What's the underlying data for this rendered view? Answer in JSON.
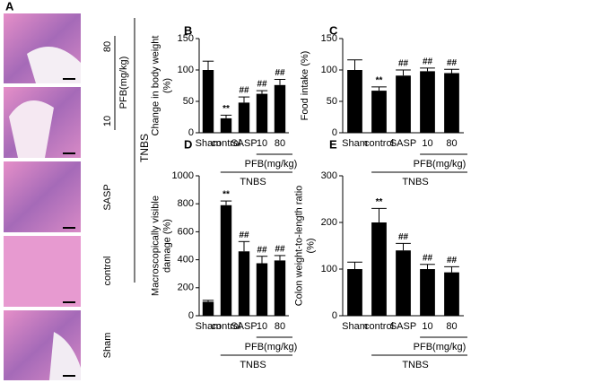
{
  "panel_a": {
    "label": "A",
    "dose_high": "80",
    "dose_low": "10",
    "group": "PFB(mg/kg)",
    "sasp": "SASP",
    "control": "control",
    "sham": "Sham",
    "tnbs": "TNBS"
  },
  "chart_data": [
    {
      "type": "bar",
      "panel": "B",
      "ylabel": "Change in body weight\n(%)",
      "categories": [
        "Sham",
        "control",
        "SASP",
        "10",
        "80"
      ],
      "values": [
        100,
        23,
        48,
        62,
        76
      ],
      "errors": [
        14,
        5,
        9,
        5,
        9
      ],
      "annotations": [
        null,
        "**",
        "##",
        "##",
        "##"
      ],
      "group_label": "PFB(mg/kg)",
      "outer_label": "TNBS",
      "color": "#000000",
      "ylim": [
        0,
        150
      ],
      "yticks": [
        0,
        50,
        100,
        150
      ]
    },
    {
      "type": "bar",
      "panel": "C",
      "ylabel": "Food intake (%)",
      "categories": [
        "Sham",
        "control",
        "SASP",
        "10",
        "80"
      ],
      "values": [
        100,
        67,
        91,
        98,
        95
      ],
      "errors": [
        16,
        6,
        9,
        5,
        6
      ],
      "annotations": [
        null,
        "**",
        "##",
        "##",
        "##"
      ],
      "group_label": "PFB(mg/kg)",
      "outer_label": "TNBS",
      "color": "#000000",
      "ylim": [
        0,
        150
      ],
      "yticks": [
        0,
        50,
        100,
        150
      ]
    },
    {
      "type": "bar",
      "panel": "D",
      "ylabel": "Macroscopically visible\ndamage  (%)",
      "categories": [
        "Sham",
        "control",
        "SASP",
        "10",
        "80"
      ],
      "values": [
        100,
        790,
        460,
        375,
        395
      ],
      "errors": [
        10,
        30,
        70,
        50,
        35
      ],
      "annotations": [
        null,
        "**",
        "##",
        "##",
        "##"
      ],
      "group_label": "PFB(mg/kg)",
      "outer_label": "TNBS",
      "color": "#000000",
      "ylim": [
        0,
        1000
      ],
      "yticks": [
        0,
        200,
        400,
        600,
        800,
        1000
      ]
    },
    {
      "type": "bar",
      "panel": "E",
      "ylabel": "Colon weight-to-length ratio\n(%)",
      "categories": [
        "Sham",
        "control",
        "SASP",
        "10",
        "80"
      ],
      "values": [
        100,
        200,
        140,
        100,
        93
      ],
      "errors": [
        15,
        30,
        15,
        10,
        12
      ],
      "annotations": [
        null,
        "**",
        "##",
        "##",
        "##"
      ],
      "group_label": "PFB(mg/kg)",
      "outer_label": "TNBS",
      "color": "#000000",
      "ylim": [
        0,
        300
      ],
      "yticks": [
        0,
        100,
        200,
        300
      ]
    }
  ]
}
